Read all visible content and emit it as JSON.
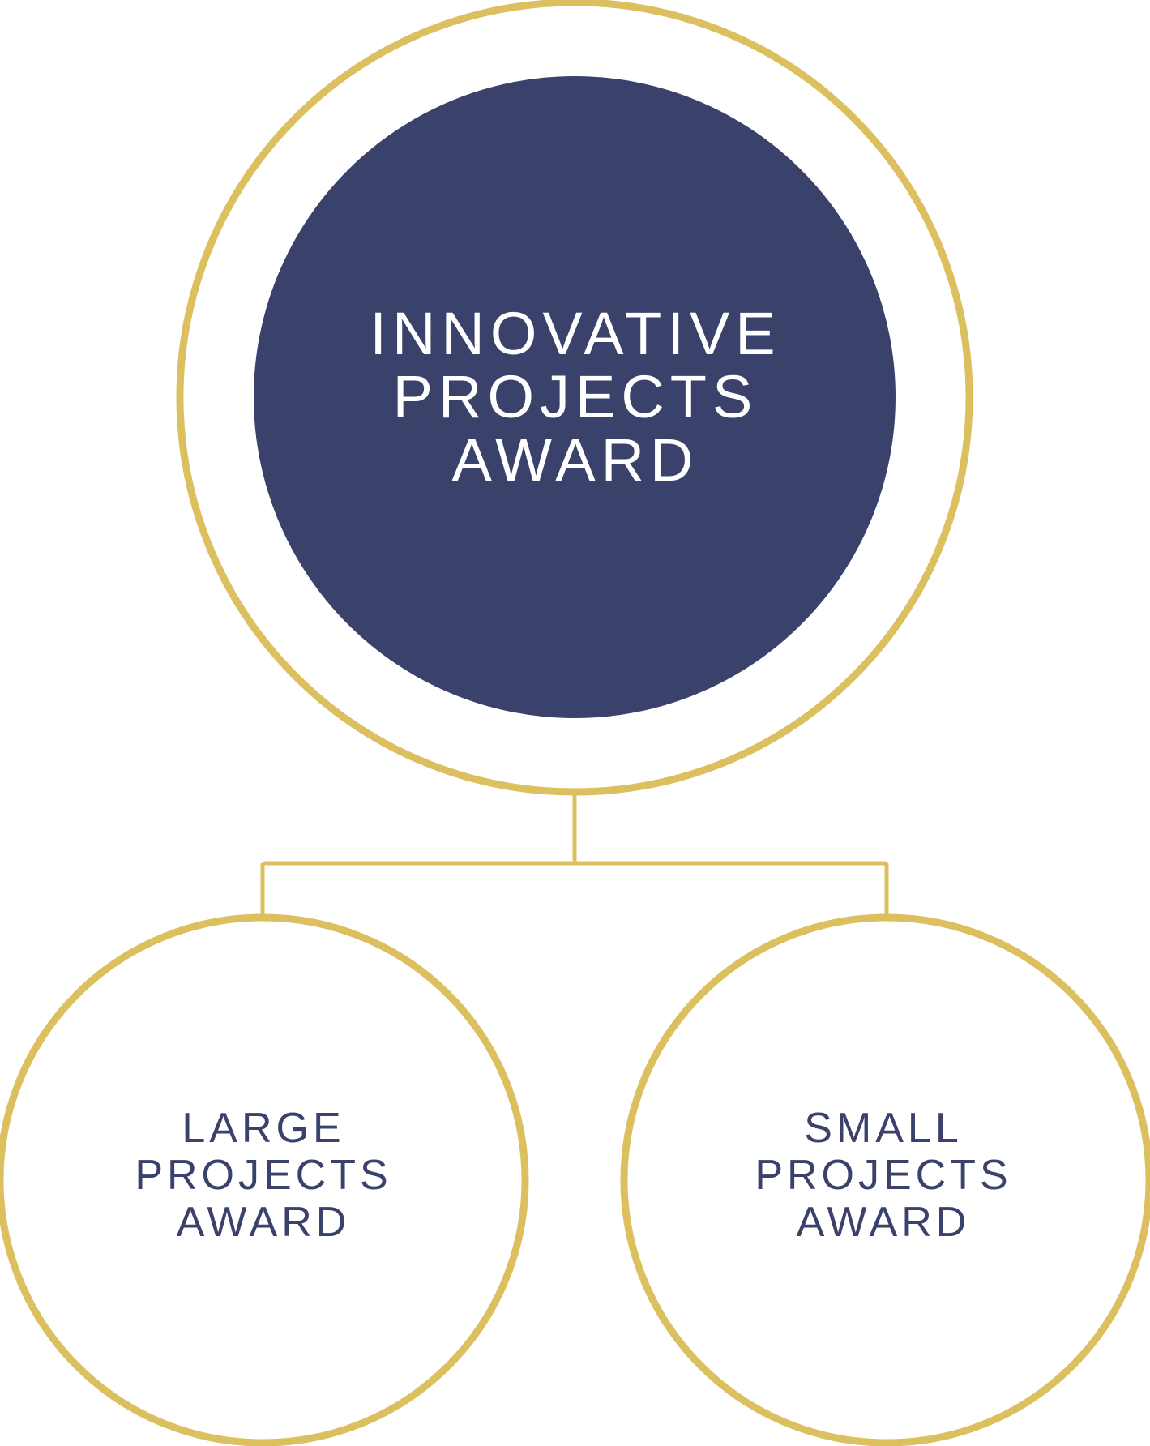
{
  "colors": {
    "accent_gold": "#dcc05f",
    "navy": "#3a416b",
    "white": "#ffffff",
    "background": "#ffffff"
  },
  "nodes": {
    "top": {
      "lines": [
        "INNOVATIVE",
        "PROJECTS",
        "AWARD"
      ]
    },
    "left": {
      "lines": [
        "LARGE",
        "PROJECTS",
        "AWARD"
      ]
    },
    "right": {
      "lines": [
        "SMALL",
        "PROJECTS",
        "AWARD"
      ]
    }
  }
}
